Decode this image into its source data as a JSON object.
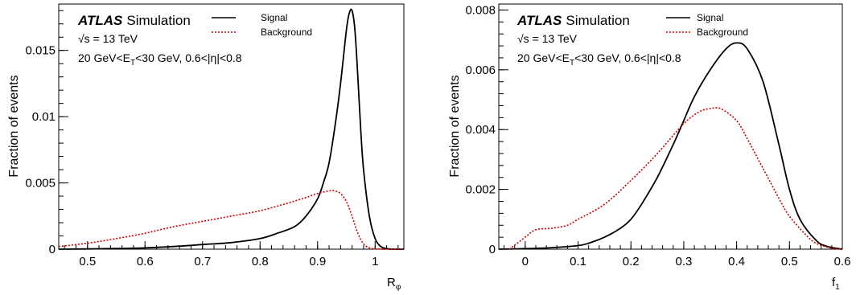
{
  "chart_data": [
    {
      "type": "line",
      "ylabel": "Fraction of events",
      "xlabel_main": "R",
      "xlabel_sub": "φ",
      "xlim": [
        0.45,
        1.05
      ],
      "ylim": [
        0,
        0.0185
      ],
      "xticks": [
        0.5,
        0.6,
        0.7,
        0.8,
        0.9,
        1
      ],
      "xtick_labels": [
        "0.5",
        "0.6",
        "0.7",
        "0.8",
        "0.9",
        "1"
      ],
      "yticks": [
        0,
        0.005,
        0.01,
        0.015
      ],
      "ytick_labels": [
        "0",
        "0.005",
        "0.01",
        "0.015"
      ],
      "annotations": {
        "atlas": "ATLAS",
        "simulation": "Simulation",
        "energy": "√s = 13 TeV",
        "cut_prefix": "20 GeV<E",
        "cut_sub": "T",
        "cut_suffix": "<30 GeV, 0.6<|η|<0.8"
      },
      "legend": {
        "placement": "top-center",
        "entries": [
          "Signal",
          "Background"
        ]
      },
      "series": [
        {
          "name": "Signal",
          "color": "#000000",
          "style": "solid",
          "x": [
            0.45,
            0.5,
            0.55,
            0.6,
            0.65,
            0.7,
            0.75,
            0.8,
            0.83,
            0.86,
            0.88,
            0.9,
            0.91,
            0.92,
            0.93,
            0.94,
            0.95,
            0.955,
            0.96,
            0.965,
            0.97,
            0.975,
            0.98,
            0.99,
            1.0,
            1.01,
            1.02,
            1.03,
            1.05
          ],
          "y": [
            0,
            2e-05,
            5e-05,
            0.0001,
            0.0002,
            0.00035,
            0.0005,
            0.0008,
            0.0012,
            0.0017,
            0.0025,
            0.0038,
            0.005,
            0.0065,
            0.0092,
            0.0125,
            0.0165,
            0.0178,
            0.018,
            0.0165,
            0.013,
            0.009,
            0.006,
            0.0025,
            0.0008,
            0.0002,
            5e-05,
            0,
            0
          ]
        },
        {
          "name": "Background",
          "color": "#cc0000",
          "style": "dashed",
          "x": [
            0.45,
            0.5,
            0.55,
            0.6,
            0.65,
            0.7,
            0.75,
            0.8,
            0.85,
            0.88,
            0.9,
            0.92,
            0.93,
            0.94,
            0.95,
            0.96,
            0.97,
            0.98,
            0.99,
            1.0,
            1.02,
            1.05
          ],
          "y": [
            0.0002,
            0.00045,
            0.0008,
            0.0012,
            0.0017,
            0.0021,
            0.0025,
            0.0029,
            0.0035,
            0.0039,
            0.0042,
            0.0044,
            0.0044,
            0.0042,
            0.0036,
            0.0025,
            0.0012,
            0.0004,
            0.0001,
            2e-05,
            0,
            0
          ]
        }
      ]
    },
    {
      "type": "line",
      "ylabel": "Fraction of events",
      "xlabel_main": "f",
      "xlabel_sub": "1",
      "xlim": [
        -0.05,
        0.6
      ],
      "ylim": [
        0,
        0.0082
      ],
      "xticks": [
        0,
        0.1,
        0.2,
        0.3,
        0.4,
        0.5,
        0.6
      ],
      "xtick_labels": [
        "0",
        "0.1",
        "0.2",
        "0.3",
        "0.4",
        "0.5",
        "0.6"
      ],
      "yticks": [
        0,
        0.002,
        0.004,
        0.006,
        0.008
      ],
      "ytick_labels": [
        "0",
        "0.002",
        "0.004",
        "0.006",
        "0.008"
      ],
      "annotations": {
        "atlas": "ATLAS",
        "simulation": "Simulation",
        "energy": "√s = 13 TeV",
        "cut_prefix": "20 GeV<E",
        "cut_sub": "T",
        "cut_suffix": "<30 GeV, 0.6<|η|<0.8"
      },
      "legend": {
        "placement": "top-center",
        "entries": [
          "Signal",
          "Background"
        ]
      },
      "series": [
        {
          "name": "Signal",
          "color": "#000000",
          "style": "solid",
          "x": [
            -0.05,
            0,
            0.05,
            0.1,
            0.12,
            0.15,
            0.18,
            0.2,
            0.22,
            0.25,
            0.28,
            0.3,
            0.32,
            0.35,
            0.38,
            0.4,
            0.42,
            0.45,
            0.48,
            0.5,
            0.52,
            0.55,
            0.57,
            0.6
          ],
          "y": [
            0,
            2e-05,
            5e-05,
            0.00012,
            0.0002,
            0.0004,
            0.0007,
            0.001,
            0.0015,
            0.0024,
            0.0035,
            0.0043,
            0.0051,
            0.006,
            0.0067,
            0.0069,
            0.0067,
            0.0056,
            0.0035,
            0.002,
            0.001,
            0.0003,
            0.0001,
            0
          ]
        },
        {
          "name": "Background",
          "color": "#cc0000",
          "style": "dashed",
          "x": [
            -0.03,
            0,
            0.02,
            0.05,
            0.08,
            0.1,
            0.15,
            0.2,
            0.25,
            0.3,
            0.33,
            0.35,
            0.37,
            0.4,
            0.42,
            0.45,
            0.48,
            0.5,
            0.53,
            0.55,
            0.58,
            0.6
          ],
          "y": [
            0,
            0.0004,
            0.00065,
            0.0007,
            0.0008,
            0.001,
            0.0015,
            0.0023,
            0.0032,
            0.0042,
            0.0046,
            0.0047,
            0.0047,
            0.0043,
            0.0037,
            0.0027,
            0.0017,
            0.0011,
            0.0005,
            0.0002,
            3e-05,
            0
          ]
        }
      ]
    }
  ]
}
